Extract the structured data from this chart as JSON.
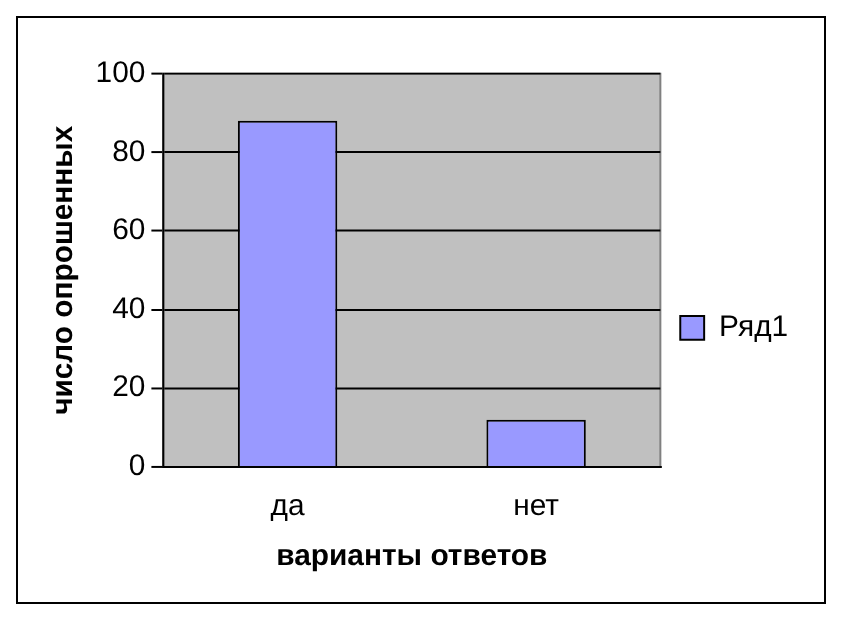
{
  "chart_data": {
    "type": "bar",
    "xlabel": "варианты ответов",
    "ylabel": "число опрошенных",
    "categories": [
      "да",
      "нет"
    ],
    "series": [
      {
        "name": "Ряд1",
        "color": "#9999ff",
        "values": [
          88,
          12
        ]
      }
    ],
    "ylim": [
      0,
      100
    ],
    "yticks": [
      0,
      20,
      40,
      60,
      80,
      100
    ],
    "grid": "y",
    "legend": "right"
  }
}
